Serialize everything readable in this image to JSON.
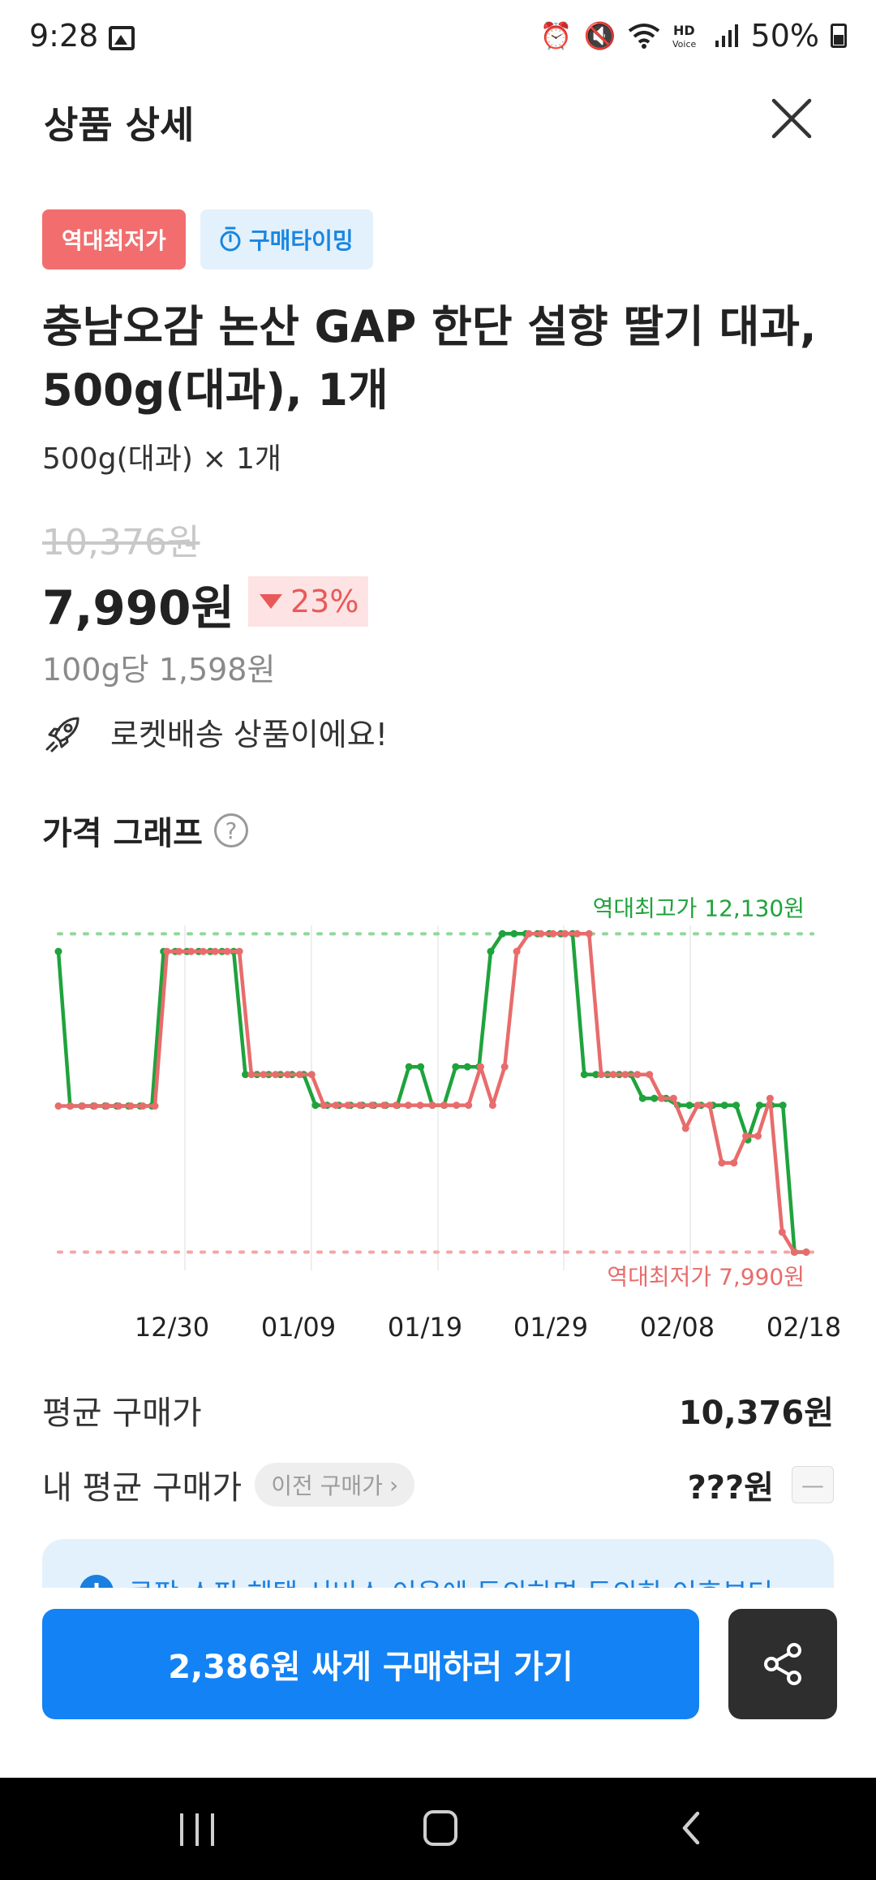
{
  "status_bar": {
    "time": "9:28",
    "battery": "50%",
    "icons": [
      "gallery-icon",
      "alarm-icon",
      "mute-icon",
      "wifi-icon",
      "hd-voice-icon",
      "signal-icon",
      "battery-icon"
    ]
  },
  "header": {
    "title": "상품 상세"
  },
  "badges": {
    "lowest": "역대최저가",
    "timing": "구매타이밍"
  },
  "product": {
    "title": "충남오감 논산 GAP 한단 설향 딸기 대과, 500g(대과), 1개",
    "option": "500g(대과) × 1개",
    "original_price": "10,376원",
    "sale_price": "7,990원",
    "discount": "23%",
    "unit_price": "100g당 1,598원",
    "rocket_text": "로켓배송 상품이에요!"
  },
  "graph": {
    "title": "가격 그래프",
    "help": "?",
    "max_label": "역대최고가 12,130원",
    "min_label": "역대최저가 7,990원"
  },
  "chart_data": {
    "type": "line",
    "x_tick_labels": [
      "12/30",
      "01/09",
      "01/19",
      "01/29",
      "02/08",
      "02/18"
    ],
    "ylim": [
      7700,
      12450
    ],
    "reference_lines": [
      {
        "label": "역대최고가 12,130원",
        "value": 12130,
        "color": "#7fd08f"
      },
      {
        "label": "역대최저가 7,990원",
        "value": 7990,
        "color": "#f5a5a5"
      }
    ],
    "series": [
      {
        "color": "#1fa33c",
        "values": [
          11900,
          9890,
          9890,
          9890,
          9890,
          9890,
          9890,
          9890,
          9890,
          11900,
          11900,
          11900,
          11900,
          11900,
          11900,
          11900,
          10300,
          10300,
          10300,
          10300,
          10300,
          10300,
          10300,
          10300,
          10300,
          10300,
          10300,
          10300,
          10300,
          10300,
          10300,
          10300,
          10300,
          10300,
          10300,
          10300,
          10300,
          10300,
          10300,
          10300,
          10300,
          12000,
          12130,
          12130,
          12130,
          12130,
          12130,
          12130,
          10300,
          10300,
          10300,
          10300,
          10300,
          10300,
          9900,
          9900,
          9900,
          9900,
          9900,
          9900,
          9900,
          9900,
          9900,
          9900,
          9900,
          9900,
          7990,
          7990
        ],
        "note": "",
        "display": [
          11900,
          9890,
          9890,
          9890,
          9890,
          9890,
          9890,
          9890,
          9890,
          11900,
          11900,
          11900,
          11900,
          11900,
          11900,
          11900,
          10300,
          10300,
          10300,
          10300,
          10300,
          10300,
          9900,
          9900,
          9900,
          9900,
          9900,
          9900,
          9900,
          9900,
          10400,
          10400,
          9900,
          9900,
          10400,
          10400,
          10400,
          11900,
          12130,
          12130,
          12130,
          12130,
          12130,
          12130,
          12130,
          10300,
          10300,
          10300,
          10300,
          10300,
          9990,
          9990,
          9990,
          9900,
          9900,
          9900,
          9900,
          9900,
          9900,
          9450,
          9900,
          9900,
          9900,
          7990,
          7990
        ]
      },
      {
        "color": "#e86c6c",
        "display": [
          9890,
          9890,
          9890,
          9890,
          9890,
          9890,
          9890,
          9890,
          9890,
          11900,
          11900,
          11900,
          11900,
          11900,
          11900,
          11900,
          10300,
          10300,
          10300,
          10300,
          10300,
          10300,
          9900,
          9900,
          9900,
          9900,
          9900,
          9900,
          9900,
          9900,
          9900,
          9900,
          9900,
          9900,
          9900,
          10400,
          9900,
          10400,
          11900,
          12130,
          12130,
          12130,
          12130,
          12130,
          12130,
          10300,
          10300,
          10300,
          10300,
          10300,
          9990,
          9990,
          9600,
          9900,
          9900,
          9150,
          9150,
          9500,
          9500,
          9990,
          8250,
          7990,
          7990
        ]
      }
    ]
  },
  "stats": {
    "avg_label": "평균 구매가",
    "avg_value": "10,376원",
    "my_avg_label": "내 평균 구매가",
    "prev_chip": "이전 구매가",
    "my_avg_value": "???원",
    "dash": "—"
  },
  "notice": {
    "text": "쿠팡 스핀 혜택 서비스 이용에 동의하면 동의한 이후부터"
  },
  "buttons": {
    "buy": "2,386원 싸게 구매하러 가기"
  }
}
